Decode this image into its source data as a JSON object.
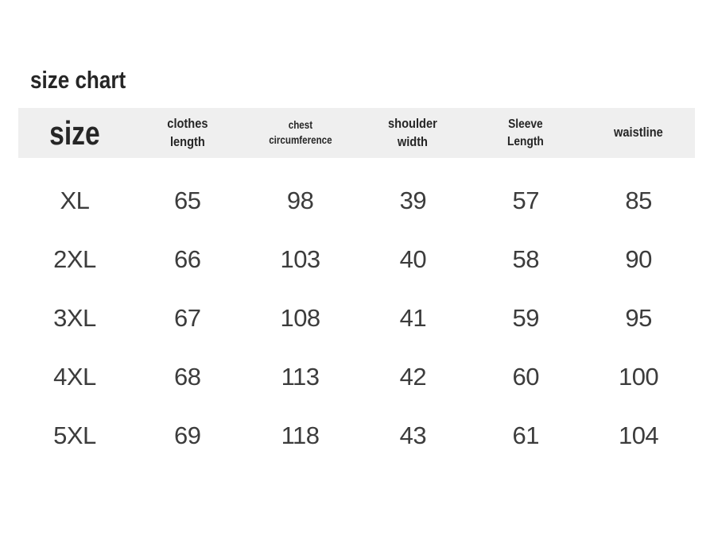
{
  "title": "size chart",
  "colors": {
    "header_band": "#efefef",
    "header_text": "#262626",
    "data_text": "#3c3c3c",
    "background": "#ffffff"
  },
  "table": {
    "headers": [
      {
        "lines": [
          "size"
        ]
      },
      {
        "lines": [
          "clothes",
          "length"
        ]
      },
      {
        "lines": [
          "chest",
          "circumference"
        ]
      },
      {
        "lines": [
          "shoulder",
          "width"
        ]
      },
      {
        "lines": [
          "Sleeve",
          "Length"
        ]
      },
      {
        "lines": [
          "waistline"
        ]
      }
    ],
    "rows": [
      {
        "cells": [
          "XL",
          "65",
          "98",
          "39",
          "57",
          "85"
        ]
      },
      {
        "cells": [
          "2XL",
          "66",
          "103",
          "40",
          "58",
          "90"
        ]
      },
      {
        "cells": [
          "3XL",
          "67",
          "108",
          "41",
          "59",
          "95"
        ]
      },
      {
        "cells": [
          "4XL",
          "68",
          "113",
          "42",
          "60",
          "100"
        ]
      },
      {
        "cells": [
          "5XL",
          "69",
          "118",
          "43",
          "61",
          "104"
        ]
      }
    ]
  },
  "chart_data": {
    "type": "table",
    "title": "size chart",
    "columns": [
      "size",
      "clothes length",
      "chest circumference",
      "shoulder width",
      "Sleeve Length",
      "waistline"
    ],
    "rows": [
      [
        "XL",
        65,
        98,
        39,
        57,
        85
      ],
      [
        "2XL",
        66,
        103,
        40,
        58,
        90
      ],
      [
        "3XL",
        67,
        108,
        41,
        59,
        95
      ],
      [
        "4XL",
        68,
        113,
        42,
        60,
        100
      ],
      [
        "5XL",
        69,
        118,
        43,
        61,
        104
      ]
    ]
  }
}
